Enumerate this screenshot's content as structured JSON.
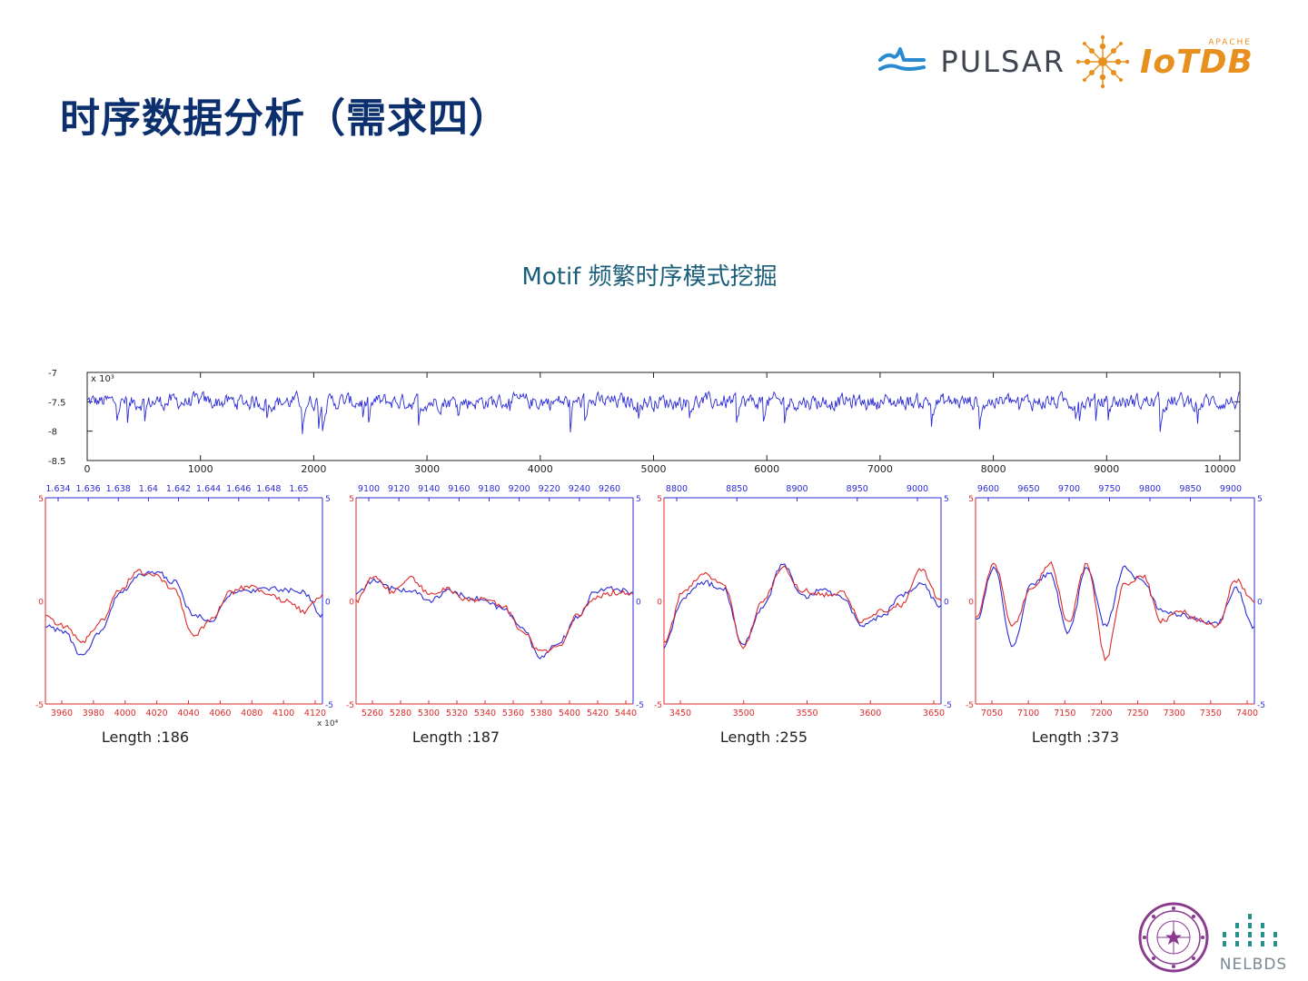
{
  "slide": {
    "title": "时序数据分析（需求四）",
    "subtitle": "Motif 频繁时序模式挖掘"
  },
  "logos": {
    "pulsar": "PULSAR",
    "iotdb": "IoTDB",
    "apache": "APACHE",
    "nelbds": "NELBDS"
  },
  "colors": {
    "title": "#0c2f6e",
    "blue_series": "#2b2bd6",
    "red_series": "#dd2a2a",
    "pulsar": "#2a8bd0",
    "iotdb": "#e8901f"
  },
  "chart_data": [
    {
      "type": "line",
      "title": "",
      "y_multiplier_label": "x 10³",
      "x_ticks": [
        0,
        1000,
        2000,
        3000,
        4000,
        5000,
        6000,
        7000,
        8000,
        9000,
        10000
      ],
      "y_ticks": [
        "-7",
        "-7.5",
        "-8",
        "-8.5"
      ],
      "xlim": [
        0,
        10000
      ],
      "ylim": [
        -8.5,
        -7
      ],
      "series": [
        {
          "color": "#2b2bd6",
          "summary": {
            "mean": -7.5,
            "range": [
              -8.05,
              -7.3
            ]
          }
        }
      ]
    },
    {
      "type": "line",
      "caption": "Length :186",
      "bottom_x_ticks": [
        "3960",
        "3980",
        "4000",
        "4020",
        "4040",
        "4060",
        "4080",
        "4100",
        "4120"
      ],
      "bottom_multiplier": "x 10⁴",
      "top_x_ticks": [
        "1.634",
        "1.636",
        "1.638",
        "1.64",
        "1.642",
        "1.644",
        "1.646",
        "1.648",
        "1.65"
      ],
      "left_y_ticks": [
        "5",
        "0",
        "-5"
      ],
      "right_y_ticks": [
        "5",
        "0",
        "-5"
      ],
      "ylim": [
        -5,
        5
      ],
      "series": [
        {
          "color": "#2b2bd6",
          "values": [
            -1.2,
            -1.5,
            -2.7,
            -1.5,
            0.3,
            1.2,
            1.4,
            0.9,
            -0.7,
            -0.9,
            0.3,
            0.5,
            0.6,
            0.5,
            0.4,
            -0.7
          ]
        },
        {
          "color": "#dd2a2a",
          "values": [
            -0.8,
            -1.2,
            -2.0,
            -1.0,
            0.5,
            1.4,
            1.2,
            0.5,
            -1.7,
            -0.9,
            0.4,
            0.7,
            0.3,
            0.0,
            -0.5,
            0.3
          ]
        }
      ]
    },
    {
      "type": "line",
      "caption": "Length :187",
      "bottom_x_ticks": [
        "5260",
        "5280",
        "5300",
        "5320",
        "5340",
        "5360",
        "5380",
        "5400",
        "5420",
        "5440"
      ],
      "top_x_ticks": [
        "9100",
        "9120",
        "9140",
        "9160",
        "9180",
        "9200",
        "9220",
        "9240",
        "9260"
      ],
      "left_y_ticks": [
        "5",
        "0",
        "-5"
      ],
      "right_y_ticks": [
        "5",
        "0",
        "-5"
      ],
      "ylim": [
        -5,
        5
      ],
      "series": [
        {
          "color": "#2b2bd6",
          "values": [
            0.4,
            1.0,
            0.6,
            0.5,
            0.0,
            0.5,
            0.2,
            0.0,
            -0.4,
            -1.3,
            -2.8,
            -2.0,
            -0.8,
            0.5,
            0.6,
            0.4
          ]
        },
        {
          "color": "#dd2a2a",
          "values": [
            0.0,
            1.2,
            0.4,
            1.1,
            0.3,
            0.6,
            0.0,
            0.1,
            -0.3,
            -1.5,
            -2.5,
            -2.2,
            -0.7,
            0.2,
            0.4,
            0.3
          ]
        }
      ]
    },
    {
      "type": "line",
      "caption": "Length :255",
      "bottom_x_ticks": [
        "3450",
        "3500",
        "3550",
        "3600",
        "3650"
      ],
      "top_x_ticks": [
        "8800",
        "8850",
        "8900",
        "8950",
        "9000"
      ],
      "left_y_ticks": [
        "5",
        "0",
        "-5"
      ],
      "right_y_ticks": [
        "5",
        "0",
        "-5"
      ],
      "ylim": [
        -5,
        5
      ],
      "series": [
        {
          "color": "#2b2bd6",
          "values": [
            -2.2,
            0.2,
            0.9,
            0.6,
            -2.1,
            -0.3,
            1.8,
            0.2,
            0.5,
            0.2,
            -1.2,
            -0.8,
            0.3,
            0.8,
            -0.3
          ]
        },
        {
          "color": "#dd2a2a",
          "values": [
            -2.0,
            0.5,
            1.3,
            0.8,
            -2.2,
            0.0,
            1.6,
            0.5,
            0.3,
            0.4,
            -1.0,
            -0.5,
            -0.2,
            1.5,
            0.0
          ]
        }
      ]
    },
    {
      "type": "line",
      "caption": "Length :373",
      "bottom_x_ticks": [
        "7050",
        "7100",
        "7150",
        "7200",
        "7250",
        "7300",
        "7350",
        "7400"
      ],
      "top_x_ticks": [
        "9600",
        "9650",
        "9700",
        "9750",
        "9800",
        "9850",
        "9900"
      ],
      "left_y_ticks": [
        "5",
        "0",
        "-5"
      ],
      "right_y_ticks": [
        "5",
        "0",
        "-5"
      ],
      "ylim": [
        -5,
        5
      ],
      "series": [
        {
          "color": "#2b2bd6",
          "values": [
            -1.0,
            1.6,
            -2.2,
            0.8,
            1.3,
            -1.5,
            1.6,
            -1.2,
            1.6,
            0.9,
            -0.5,
            -0.7,
            -0.9,
            -1.1,
            0.6,
            -1.3
          ]
        },
        {
          "color": "#dd2a2a",
          "values": [
            -0.8,
            1.8,
            -1.2,
            0.5,
            1.8,
            -1.0,
            1.8,
            -2.8,
            0.8,
            1.2,
            -1.0,
            -0.5,
            -0.9,
            -1.2,
            1.0,
            0.0
          ]
        }
      ]
    }
  ]
}
